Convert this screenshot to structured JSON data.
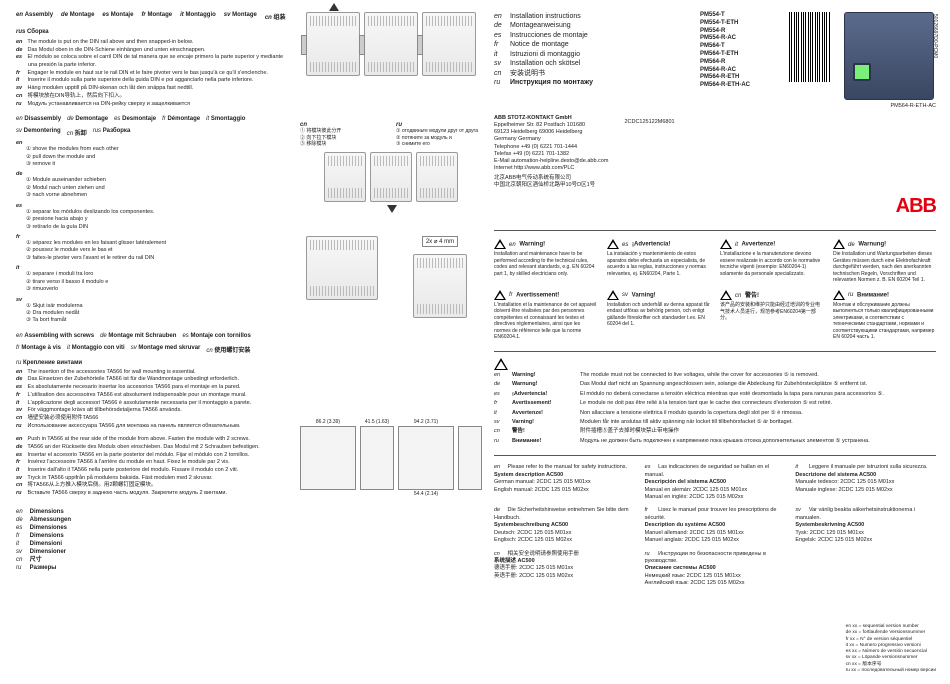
{
  "sections": {
    "assembly": {
      "head": [
        {
          "lg": "en",
          "t": "Assembly"
        },
        {
          "lg": "de",
          "t": "Montage"
        },
        {
          "lg": "es",
          "t": "Montaje"
        },
        {
          "lg": "fr",
          "t": "Montage"
        },
        {
          "lg": "it",
          "t": "Montaggio"
        },
        {
          "lg": "sv",
          "t": "Montage"
        },
        {
          "lg": "cn",
          "t": "组装"
        },
        {
          "lg": "rus",
          "t": "Сборка"
        }
      ],
      "lines": [
        {
          "lg": "en",
          "t": "The module is put on the DIN rail above and then snapped-in below."
        },
        {
          "lg": "de",
          "t": "Das Modul oben in die DIN-Schiene einhängen und unten einschnappen."
        },
        {
          "lg": "es",
          "t": "El módulo se coloca sobre el carril DIN de tal manera que se encaje primero la parte superior y mediante una presión la parte inferior."
        },
        {
          "lg": "fr",
          "t": "Engager le module en haut sur le rail DIN et le faire pivoter vers le bas jusqu'à ce qu'il s'enclenche."
        },
        {
          "lg": "it",
          "t": "Inserire il modulo sulla parte superiore della guida DIN e poi agganciarlo nella parte inferiore."
        },
        {
          "lg": "sv",
          "t": "Häng modulen upptill på DIN-skenan och låt den snäppa fast nedtill."
        },
        {
          "lg": "cn",
          "t": "将模块放在DIN导轨上，然后向下扣入。"
        },
        {
          "lg": "ru",
          "t": "Модуль устанавливается на DIN-рейку сверху и защелкивается"
        }
      ]
    },
    "disassembly": {
      "head": [
        {
          "lg": "en",
          "t": "Disassembly"
        },
        {
          "lg": "de",
          "t": "Demontage"
        },
        {
          "lg": "es",
          "t": "Desmontaje"
        },
        {
          "lg": "fr",
          "t": "Démontage"
        },
        {
          "lg": "it",
          "t": "Smontaggio"
        },
        {
          "lg": "sv",
          "t": "Demontering"
        },
        {
          "lg": "cn",
          "t": "拆卸"
        },
        {
          "lg": "rus",
          "t": "Разборка"
        }
      ],
      "steps": {
        "en": [
          "shove the modules from each other",
          "pull down the module and",
          "remove it"
        ],
        "de": [
          "Module auseinander schieben",
          "Modul nach unten ziehen und",
          "nach vorne abnehmen"
        ],
        "es": [
          "separar los módulos deslizando los componentes.",
          "presione hacia abajo y",
          "retírarlo de la guía DIN"
        ],
        "fr": [
          "séparez les modules en les faisant glisser latéralement",
          "poussez le module vers le bas et",
          "faites-le pivoter vers l'avant et le retirer du rail DIN"
        ],
        "it": [
          "separare i moduli tra loro",
          "tirare verso il basso il modulo e",
          "rimuoverlo"
        ],
        "sv": [
          "Skjut isär modulerna",
          "Dra modulen nedåt",
          "Ta bort framåt"
        ]
      },
      "steps2": {
        "cn": [
          "将模块彼此分开",
          "向下拉下模块",
          "移除模块"
        ],
        "ru": [
          "отодвиньте модули друг от друга",
          "потяните за модуль и",
          "снимите его"
        ]
      }
    },
    "screws": {
      "head": [
        {
          "lg": "en",
          "t": "Assembling with screws"
        },
        {
          "lg": "de",
          "t": "Montage mit Schrauben"
        },
        {
          "lg": "es",
          "t": "Montaje con tornillos"
        },
        {
          "lg": "fr",
          "t": "Montage à vis"
        },
        {
          "lg": "it",
          "t": "Montaggio con viti"
        },
        {
          "lg": "sv",
          "t": "Montage med skruvar"
        },
        {
          "lg": "cn",
          "t": "使用螺钉安装"
        },
        {
          "lg": "ru",
          "t": "Крепление винтами"
        }
      ],
      "lines": [
        {
          "lg": "en",
          "t": "The insertion of the accessories TA566 for wall mounting is essential."
        },
        {
          "lg": "de",
          "t": "Das Einsetzen der Zubehörteile TA566 ist für die Wandmontage unbedingt erforderlich."
        },
        {
          "lg": "es",
          "t": "Es absolutamente necesario insertar los accesorios TA566 para el montaje en la pared."
        },
        {
          "lg": "fr",
          "t": "L'utilisation des accessoires TA566 est absolument indispensable pour un montage mural."
        },
        {
          "lg": "it",
          "t": "L'applicazione degli accessori TA566 è assolutamente necessaria per il montaggio a parete."
        },
        {
          "lg": "sv",
          "t": "För väggmontage krävs att tillbehörsdetaljerna TA566 används."
        },
        {
          "lg": "cn",
          "t": "墙壁安装必须使用附件TA566"
        },
        {
          "lg": "ru",
          "t": "Использование аксессуара TA566 для монтажа на панель является обязательным."
        }
      ],
      "lines2": [
        {
          "lg": "en",
          "t": "Push in TA566 at the rear side of the module from above. Fasten the module with 2 screws."
        },
        {
          "lg": "de",
          "t": "TA566 an der Rückseite des Moduls oben einschieben. Das Modul mit 2 Schrauben befestigen."
        },
        {
          "lg": "es",
          "t": "Insertar el accesorio TA566 en la parte posterior del módulo. Fijar el módulo con 2 tornillos."
        },
        {
          "lg": "fr",
          "t": "Insérez l'accessoire TA566 à l'arrière du module en haut. Fixez le module par 2 vis."
        },
        {
          "lg": "it",
          "t": "Inserire dall'alto il TA566 nella parte posteriore del modulo. Fissare il modulo con 2 viti."
        },
        {
          "lg": "sv",
          "t": "Tryck in TA566 uppifrån på modulens baksida. Fäst modulen med 2 skruvar."
        },
        {
          "lg": "cn",
          "t": "将TA566从上方推入模块后侧。用2颗螺钉固定模块。"
        },
        {
          "lg": "ru",
          "t": "Вставьте TA566 сверху в заднюю часть модуля. Закрепите модуль 2 винтами."
        }
      ]
    },
    "dimensions": {
      "head": [
        {
          "lg": "en",
          "t": "Dimensions"
        },
        {
          "lg": "de",
          "t": "Abmessungen"
        },
        {
          "lg": "es",
          "t": "Dimensiones"
        },
        {
          "lg": "fr",
          "t": "Dimensions"
        },
        {
          "lg": "it",
          "t": "Dimensioni"
        },
        {
          "lg": "sv",
          "t": "Dimensioner"
        },
        {
          "lg": "cn",
          "t": "尺寸"
        },
        {
          "lg": "ru",
          "t": "Размеры"
        }
      ]
    }
  },
  "right": {
    "title": [
      {
        "lg": "en",
        "t": "Installation instructions"
      },
      {
        "lg": "de",
        "t": "Montageanweisung"
      },
      {
        "lg": "es",
        "t": "Instrucciones de montaje"
      },
      {
        "lg": "fr",
        "t": "Notice de montage"
      },
      {
        "lg": "it",
        "t": "Istruzioni di montaggio"
      },
      {
        "lg": "sv",
        "t": "Installation och skötsel"
      },
      {
        "lg": "cn",
        "t": "安装说明书"
      },
      {
        "lg": "ru",
        "t": "Инструкция по монтажу"
      }
    ],
    "models": [
      "PM554-T",
      "PM554-T-ETH",
      "PM554-R",
      "PM554-R-AC",
      "PM564-T",
      "PM564-T-ETH",
      "PM564-R",
      "PM564-R-AC",
      "PM564-R-ETH",
      "PM564-R-ETH-AC"
    ],
    "barcode_side": "2010-11-18",
    "barcode_num": "50126697D0-PCM0",
    "docno": "2CDC125122M6801",
    "caption": "PM564-R-ETH-AC",
    "company": {
      "name": "ABB STOTZ-KONTAKT GmbH",
      "l1": "Eppelheimer Str. 82    Postfach 101680",
      "l2": "69123 Heidelberg      69006 Heidelberg",
      "l3": "Germany                 Germany",
      "l4": "Telephone  +49 (0) 6221 701-1444",
      "l5": "Telefax       +49 (0) 6221 701-1382",
      "l6": "E-Mail        automation-helpline.desto@de.abb.com",
      "l7": "Internet      http://www.abb.com/PLC",
      "cn1": "北京ABB电气传动系统有限公司",
      "cn2": "中国北京朝阳区酒仙桥北路甲10号D区1号"
    },
    "logo": "ABB"
  },
  "warnings": [
    {
      "lg": "en",
      "hd": "Warning!",
      "tx": "Installation and maintenance have to be performed according to the technical rules, codes and relevant standards, e.g. EN 60204 part 1, by skilled electricians only."
    },
    {
      "lg": "es",
      "hd": "¡Advertencia!",
      "tx": "La instalación y mantenimiento de estos aparatos debe efectuarla un especialista, de acuerdo a las reglas, instrucciones y normas relevantes, ej. EN60204, Parte 1."
    },
    {
      "lg": "it",
      "hd": "Avvertenze!",
      "tx": "L'installazione e la manutenzione devono essere realizzate in accordo con le normative tecniche vigenti (esempio: EN60204-1) solamente da personale specializzato."
    },
    {
      "lg": "de",
      "hd": "Warnung!",
      "tx": "Die Installation und Wartungsarbeiten dieses Gerätes müssen durch eine Elektrofachkraft durchgeführt werden, nach den anerkannten technischen Regeln, Vorschriften und relevanten Normen z. B. EN 60204 Teil 1."
    },
    {
      "lg": "fr",
      "hd": "Avertissement!",
      "tx": "L'installation et la maintenance de cet appareil doivent être réalisées par des personnes compétentes et connaissant les textes et directives réglementaires, ainsi que les normes de référence telle que la norme EN60204.1."
    },
    {
      "lg": "sv",
      "hd": "Varning!",
      "tx": "Installation och underhåll av denna apparat får endast utföras av behörig person, och enligt gällande föreskrifter och standarder t.ex. EN 60204 del 1."
    },
    {
      "lg": "cn",
      "hd": "警告!",
      "tx": "该产品的安装和维护只能由经过培训的专业电气技术人员进行，规范参考EN60204第一部分。"
    },
    {
      "lg": "ru",
      "hd": "Внимание!",
      "tx": "Монтаж и обслуживание должны выполняться только квалифицированными электриками, в соответствии с техническими стандартами, нормами и соответствующими стандартами, например EN 60204 часть 1."
    }
  ],
  "wide_warn": [
    {
      "lg": "en",
      "hd": "Warning!",
      "tx": "The module must not be connected to live voltages, while the cover for accessories ⑤ is removed."
    },
    {
      "lg": "de",
      "hd": "Warnung!",
      "tx": "Das Modul darf nicht an Spannung angeschlossen sein, solange die Abdeckung für Zubehörsteckplätze ⑤ entfernt ist."
    },
    {
      "lg": "es",
      "hd": "¡Advertencia!",
      "tx": "El módulo no deberá conectarse a tensión eléctrica mientras que esté desmontada la tapa para ranuras para accessorios ⑤."
    },
    {
      "lg": "fr",
      "hd": "Avertissement!",
      "tx": "Le module ne doit pas être relié à la tension tant que le cache des connecteurs d'extension ⑤ est retiré."
    },
    {
      "lg": "it",
      "hd": "Avvertenze!",
      "tx": "Non allacciare a tensione elettrica il modulo quando la copertura degli slot per ⑤ è rimossa."
    },
    {
      "lg": "sv",
      "hd": "Varning!",
      "tx": "Modulen får inte anslutas till aktiv spänning när locket till tillbehörsfacket ⑤ är borttaget."
    },
    {
      "lg": "cn",
      "hd": "警告!",
      "tx": "附件插槽⑤盖子去掉时模块禁止带电操作"
    },
    {
      "lg": "ru",
      "hd": "Внимание!",
      "tx": "Модуль не должен быть подключен к напряжению пока крышка отсека дополнительных элементов ⑤ устранена."
    }
  ],
  "manuals": [
    {
      "lg": "en",
      "intro": "Please refer to the manual for safety instructions.",
      "sys": "System description AC500",
      "rows": [
        [
          "German manual:",
          "2CDC 125 015 M01xx"
        ],
        [
          "English manual:",
          "2CDC 125 015 M02xx"
        ]
      ]
    },
    {
      "lg": "es",
      "intro": "Las indicaciones de seguridad se hallan en el manual.",
      "sys": "Descripción del sistema AC500",
      "rows": [
        [
          "Manual en alemán:",
          "2CDC 125 015 M01xx"
        ],
        [
          "Manual en inglés:",
          "2CDC 125 015 M02xx"
        ]
      ]
    },
    {
      "lg": "it",
      "intro": "Leggere il manuale per istruzioni sulla sicurezza.",
      "sys": "Descrizione del sistema AC500",
      "rows": [
        [
          "Manuale tedesco:",
          "2CDC 125 015 M01xx"
        ],
        [
          "Manuale inglese:",
          "2CDC 125 015 M02xx"
        ]
      ]
    },
    {
      "lg": "de",
      "intro": "Die Sicherheitshinweise entnehmen Sie bitte dem Handbuch.",
      "sys": "Systembeschreibung AC500",
      "rows": [
        [
          "Deutsch:",
          "2CDC 125 015 M01xx"
        ],
        [
          "Englisch:",
          "2CDC 125 015 M02xx"
        ]
      ]
    },
    {
      "lg": "fr",
      "intro": "Lisez le manuel pour trouver les prescriptions de sécurité.",
      "sys": "Description du système AC500",
      "rows": [
        [
          "Manuel allemand:",
          "2CDC 125 015 M01xx"
        ],
        [
          "Manuel anglais:",
          "2CDC 125 015 M02xx"
        ]
      ]
    },
    {
      "lg": "sv",
      "intro": "Var vänlig beakta säkerhetsinstruktionerna i manualen.",
      "sys": "Systembeskrivning AC500",
      "rows": [
        [
          "Tysk:",
          "2CDC 125 015 M01xx"
        ],
        [
          "Engelsk:",
          "2CDC 125 015 M02xx"
        ]
      ]
    },
    {
      "lg": "cn",
      "intro": "相关安全说明请参照使用手册",
      "sys": "系统描述 AC500",
      "rows": [
        [
          "德语手册:",
          "2CDC 125 015 M01xx"
        ],
        [
          "英语手册:",
          "2CDC 125 015 M02xx"
        ]
      ]
    },
    {
      "lg": "ru",
      "intro": "Инструкции по безопасности приведены в руководстве.",
      "sys": "Описание системы AC500",
      "rows": [
        [
          "Немецкий язык:",
          "2CDC 125 015 M01xx"
        ],
        [
          "Английский язык:",
          "2CDC 125 015 M02xx"
        ]
      ]
    }
  ],
  "legend": [
    "en  xx = sequential version number",
    "de  xx = fortlaufende Versionsnummer",
    "fr   xx = N° de version séquentiel",
    "it   xx = Numero progressivo versioni",
    "es  xx = Número de versión secuencial",
    "sv  xx = Löpande versionsnummer",
    "cn  xx = 版本序号",
    "ru  xx = последовательный номер версии"
  ],
  "screw_note": "2x ⌀ 4 mm",
  "dim_numbers": [
    "86.2 (3.39)",
    "41.5 (1.63)",
    "94.2 (3.71)",
    "54.4 (2.14)",
    "86.2 (3.39)"
  ]
}
